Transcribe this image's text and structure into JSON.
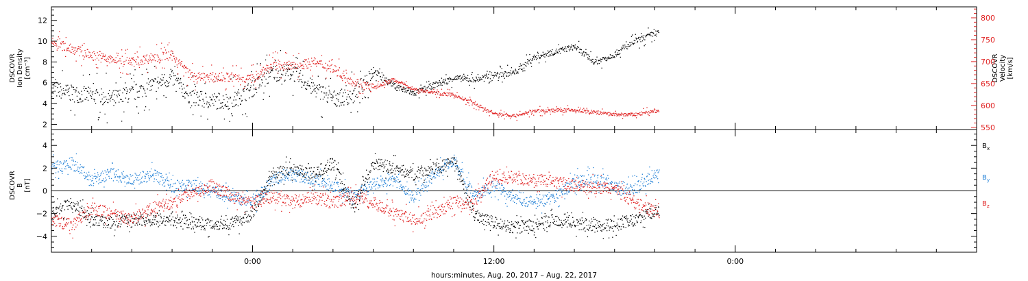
{
  "xaxis": {
    "caption": "hours:minutes, Aug. 20, 2017 – Aug. 22, 2017",
    "range_hours": [
      -10,
      36
    ],
    "labels": [
      {
        "label": "0:00",
        "hours": 0
      },
      {
        "label": "12:00",
        "hours": 12
      },
      {
        "label": "0:00",
        "hours": 24
      }
    ]
  },
  "chart_data": [
    {
      "type": "scatter",
      "panel": "plasma",
      "ylabel_left": [
        "DSCOVR",
        "Ion Density",
        "[cm⁻³]"
      ],
      "ylabel_right": [
        "DSCOVR",
        "Velocity",
        "[km/s]"
      ],
      "ylim_left": [
        1.5,
        13.3
      ],
      "ylim_right": [
        545,
        825
      ],
      "yticks_left": [
        "2",
        "4",
        "6",
        "8",
        "10",
        "12"
      ],
      "yticks_right": [
        "550",
        "600",
        "650",
        "700",
        "750",
        "800"
      ],
      "series": [
        {
          "axis": "left",
          "color": "#000000",
          "x": [
            -10,
            -9,
            -8,
            -7,
            -6,
            -5,
            -4,
            -3,
            -2,
            -1,
            0,
            1,
            2,
            3,
            4,
            5,
            6,
            7,
            8,
            9,
            10,
            11,
            12,
            13,
            14,
            15,
            16,
            17,
            18,
            19,
            20
          ],
          "y": [
            5.5,
            5.0,
            4.8,
            4.5,
            5.0,
            5.8,
            6.5,
            4.5,
            4.3,
            4.3,
            5.5,
            7.0,
            7.0,
            5.5,
            4.5,
            4.8,
            7.2,
            5.8,
            5.0,
            5.8,
            6.5,
            6.3,
            6.8,
            7.0,
            8.5,
            9.0,
            9.5,
            8.0,
            8.8,
            10.0,
            10.8
          ]
        },
        {
          "axis": "right",
          "color": "#e02020",
          "x": [
            -10,
            -9,
            -8,
            -7,
            -6,
            -5,
            -4,
            -3,
            -2,
            -1,
            0,
            1,
            2,
            3,
            4,
            5,
            6,
            7,
            8,
            9,
            10,
            11,
            12,
            13,
            14,
            15,
            16,
            17,
            18,
            19,
            20
          ],
          "y": [
            745,
            730,
            715,
            705,
            700,
            710,
            715,
            665,
            665,
            665,
            662,
            695,
            690,
            700,
            685,
            655,
            640,
            660,
            638,
            630,
            625,
            605,
            582,
            577,
            588,
            590,
            590,
            585,
            580,
            580,
            588
          ]
        }
      ]
    },
    {
      "type": "scatter",
      "panel": "magnetic-field",
      "ylabel_left": [
        "DSCOVR",
        "B",
        "[nT]"
      ],
      "ylim": [
        -5.4,
        5.4
      ],
      "yticks": [
        "4",
        "2",
        "0",
        "−2",
        "−4"
      ],
      "zero_line": true,
      "series": [
        {
          "name": "B",
          "sub": "x",
          "color": "#000000",
          "x": [
            -10,
            -9,
            -8,
            -7,
            -6,
            -5,
            -4,
            -3,
            -2,
            -1,
            0,
            1,
            2,
            3,
            4,
            5,
            6,
            7,
            8,
            9,
            10,
            11,
            12,
            13,
            14,
            15,
            16,
            17,
            18,
            19,
            20
          ],
          "y": [
            -2.0,
            -1.0,
            -2.5,
            -2.8,
            -2.5,
            -2.5,
            -2.5,
            -2.8,
            -2.9,
            -2.8,
            -2.0,
            1.5,
            2.0,
            1.5,
            2.5,
            -1.5,
            2.5,
            2.0,
            1.5,
            2.0,
            2.5,
            -2.0,
            -2.8,
            -3.2,
            -3.0,
            -2.5,
            -2.8,
            -3.0,
            -3.0,
            -2.5,
            -1.8
          ]
        },
        {
          "name": "B",
          "sub": "y",
          "color": "#1f7fd6",
          "x": [
            -10,
            -9,
            -8,
            -7,
            -6,
            -5,
            -4,
            -3,
            -2,
            -1,
            0,
            1,
            2,
            3,
            4,
            5,
            6,
            7,
            8,
            9,
            10,
            11,
            12,
            13,
            14,
            15,
            16,
            17,
            18,
            19,
            20
          ],
          "y": [
            2.0,
            2.5,
            1.0,
            1.5,
            1.0,
            1.5,
            0.5,
            0.5,
            0.0,
            -0.5,
            -1.0,
            1.0,
            1.5,
            1.0,
            0.5,
            -0.5,
            0.8,
            1.0,
            -0.5,
            1.5,
            2.8,
            -0.5,
            0.5,
            -0.5,
            -1.0,
            -0.5,
            0.8,
            1.0,
            0.5,
            0.2,
            1.5
          ]
        },
        {
          "name": "B",
          "sub": "z",
          "color": "#e02020",
          "x": [
            -10,
            -9,
            -8,
            -7,
            -6,
            -5,
            -4,
            -3,
            -2,
            -1,
            0,
            1,
            2,
            3,
            4,
            5,
            6,
            7,
            8,
            9,
            10,
            11,
            12,
            13,
            14,
            15,
            16,
            17,
            18,
            19,
            20
          ],
          "y": [
            -2.5,
            -3.0,
            -1.5,
            -2.0,
            -2.5,
            -1.5,
            -1.0,
            0.0,
            0.5,
            -0.5,
            -1.0,
            -0.5,
            -1.0,
            -0.5,
            -1.0,
            -0.5,
            -1.0,
            -2.0,
            -2.5,
            -2.0,
            -1.0,
            -1.0,
            1.5,
            1.2,
            1.0,
            0.8,
            0.5,
            0.3,
            0.2,
            -1.0,
            -1.8
          ]
        }
      ]
    }
  ]
}
